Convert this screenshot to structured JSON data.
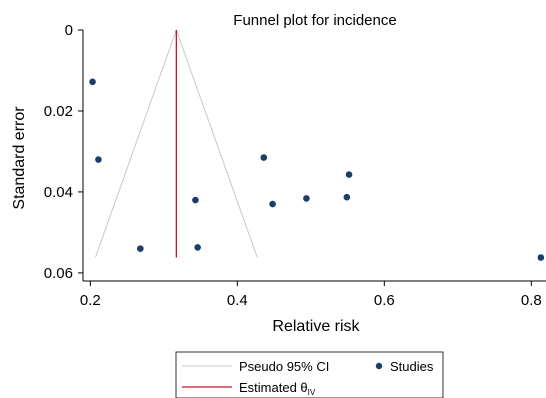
{
  "chart_data": {
    "type": "scatter",
    "title": "Funnel plot for incidence",
    "xlabel": "Relative risk",
    "ylabel": "Standard error",
    "xlim": [
      0.19,
      0.82
    ],
    "ylim": [
      0.062,
      0
    ],
    "y_axis_reversed": true,
    "x_ticks": [
      0.2,
      0.4,
      0.6,
      0.8
    ],
    "x_tick_labels": [
      "0.2",
      "0.4",
      "0.6",
      "0.8"
    ],
    "y_ticks": [
      0,
      0.02,
      0.04,
      0.06
    ],
    "y_tick_labels": [
      "0",
      "0.02",
      "0.04",
      "0.06"
    ],
    "grid": false,
    "legend_position": "bottom",
    "estimate": 0.317,
    "pseudo_ci_se_max": 0.0562,
    "series": [
      {
        "name": "Studies",
        "color": "#1a3e66",
        "points": [
          {
            "x": 0.203,
            "y": 0.0128
          },
          {
            "x": 0.211,
            "y": 0.032
          },
          {
            "x": 0.268,
            "y": 0.054
          },
          {
            "x": 0.343,
            "y": 0.042
          },
          {
            "x": 0.346,
            "y": 0.0537
          },
          {
            "x": 0.436,
            "y": 0.0315
          },
          {
            "x": 0.448,
            "y": 0.043
          },
          {
            "x": 0.494,
            "y": 0.0416
          },
          {
            "x": 0.549,
            "y": 0.0413
          },
          {
            "x": 0.552,
            "y": 0.0357
          },
          {
            "x": 0.813,
            "y": 0.0562
          }
        ]
      }
    ],
    "legend": [
      {
        "label": "Pseudo 95% CI",
        "kind": "line",
        "color": "#c8c8c8"
      },
      {
        "label": "Studies",
        "kind": "marker",
        "color": "#1a3e66"
      },
      {
        "label": "Estimated θ",
        "subscript": "IV",
        "kind": "line",
        "color": "#c8102e"
      }
    ]
  }
}
